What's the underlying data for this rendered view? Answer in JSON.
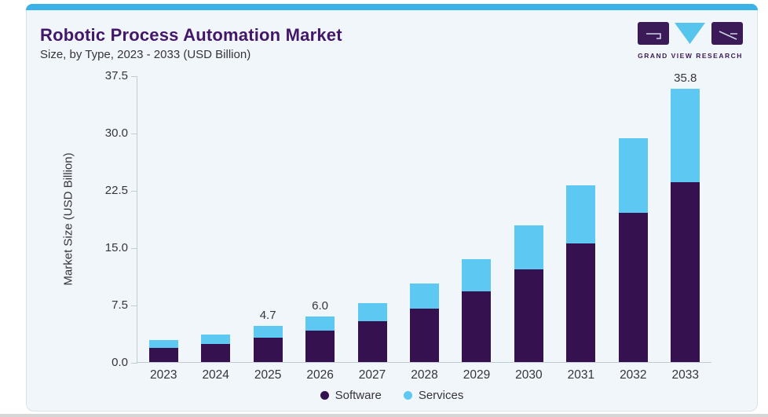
{
  "header": {
    "title": "Robotic Process Automation Market",
    "subtitle": "Size, by Type, 2023 - 2033 (USD Billion)"
  },
  "logo": {
    "text": "GRAND VIEW RESEARCH",
    "purple": "#3a1b57",
    "blue": "#56c5ee"
  },
  "colors": {
    "accent_top_bar": "#3ab2e8",
    "card_background": "#f1f6fa",
    "axis": "#c3cbd2",
    "title_purple": "#421769"
  },
  "chart_data": {
    "type": "bar",
    "stacked": true,
    "title": "Robotic Process Automation Market Size, by Type, 2023 - 2033 (USD Billion)",
    "categories": [
      "2023",
      "2024",
      "2025",
      "2026",
      "2027",
      "2028",
      "2029",
      "2030",
      "2031",
      "2032",
      "2033"
    ],
    "series": [
      {
        "name": "Software",
        "color": "#351150",
        "values": [
          1.9,
          2.4,
          3.2,
          4.1,
          5.3,
          7.0,
          9.3,
          12.1,
          15.5,
          19.5,
          23.5
        ]
      },
      {
        "name": "Services",
        "color": "#5dc9f3",
        "values": [
          1.0,
          1.2,
          1.5,
          1.9,
          2.4,
          3.3,
          4.2,
          5.8,
          7.6,
          9.8,
          12.3
        ]
      }
    ],
    "bar_total_labels": [
      "",
      "",
      "4.7",
      "6.0",
      "",
      "",
      "",
      "",
      "",
      "",
      "35.8"
    ],
    "xlabel": "",
    "ylabel": "Market Size (USD Billion)",
    "ylim": [
      0,
      37.5
    ],
    "yticks": [
      "0.0",
      "7.5",
      "15.0",
      "22.5",
      "30.0",
      "37.5"
    ],
    "grid": false,
    "legend": [
      "Software",
      "Services"
    ],
    "legend_position": "bottom-center"
  }
}
